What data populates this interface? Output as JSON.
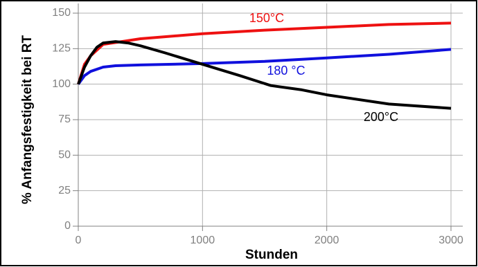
{
  "chart_data": {
    "type": "line",
    "x_label": "Stunden",
    "y_label": "% Anfangsfestigkeit bei RT",
    "xlim": [
      0,
      3000
    ],
    "ylim": [
      0,
      150
    ],
    "xticks": [
      0,
      1000,
      2000,
      3000
    ],
    "yticks": [
      0,
      25,
      50,
      75,
      100,
      125,
      150
    ],
    "grid": true,
    "series": [
      {
        "name": "150°C",
        "color": "#ee1111",
        "x": [
          0,
          50,
          100,
          200,
          500,
          1000,
          1500,
          2000,
          2500,
          3000
        ],
        "values": [
          100,
          114,
          120,
          128,
          132,
          135.5,
          138,
          140,
          142,
          143
        ]
      },
      {
        "name": "180 °C",
        "color": "#1010dd",
        "x": [
          0,
          50,
          100,
          200,
          300,
          500,
          1000,
          1500,
          2000,
          2500,
          3000
        ],
        "values": [
          100,
          106,
          109,
          112,
          113,
          113.5,
          114.5,
          116,
          118.5,
          121,
          124.5
        ]
      },
      {
        "name": "200°C",
        "color": "#000000",
        "x": [
          0,
          50,
          100,
          150,
          200,
          300,
          400,
          500,
          700,
          1000,
          1300,
          1550,
          1800,
          2000,
          2500,
          3000
        ],
        "values": [
          100,
          112,
          120,
          126,
          129,
          130,
          129,
          127,
          122,
          114,
          106,
          99,
          96,
          92.5,
          86,
          83
        ]
      }
    ]
  }
}
